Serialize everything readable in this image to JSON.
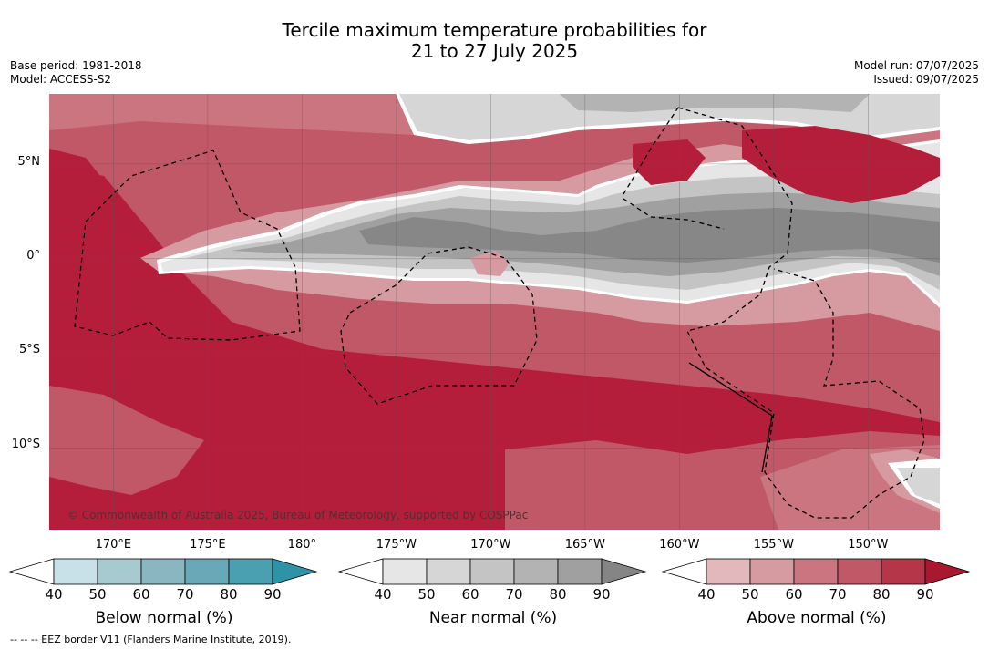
{
  "title_line1": "Tercile maximum temperature probabilities for",
  "title_line2": "21 to 27 July 2025",
  "base_period": "Base period: 1981-2018",
  "model": "Model: ACCESS-S2",
  "model_run": "Model run: 07/07/2025",
  "issued": "Issued: 09/07/2025",
  "lat_labels": [
    "5°N",
    "0°",
    "5°S",
    "10°S"
  ],
  "lat_values": [
    5,
    0,
    -5,
    -10
  ],
  "lon_labels": [
    "170°E",
    "175°E",
    "180°",
    "175°W",
    "170°W",
    "165°W",
    "160°W",
    "155°W",
    "150°W"
  ],
  "lon_values": [
    170,
    175,
    180,
    185,
    190,
    195,
    200,
    205,
    210
  ],
  "map_extent": {
    "lon_min": 166.6,
    "lon_max": 213.8,
    "lat_min": -14.3,
    "lat_max": 8.7
  },
  "copyright": "© Commonwealth of Australia 2025, Bureau of Meteorology, supported by COSPPac",
  "colorbars": [
    {
      "name": "below",
      "title": "Below normal (%)",
      "ticks": [
        "40",
        "50",
        "60",
        "70",
        "80",
        "90"
      ],
      "colors": [
        "#ffffff",
        "#c8e1e8",
        "#a7c9d0",
        "#89b6c0",
        "#69a9b7",
        "#4aa0b0",
        "#2e93a6"
      ]
    },
    {
      "name": "near",
      "title": "Near normal (%)",
      "ticks": [
        "40",
        "50",
        "60",
        "70",
        "80",
        "90"
      ],
      "colors": [
        "#ffffff",
        "#e6e6e6",
        "#d6d6d6",
        "#c4c4c4",
        "#b3b3b3",
        "#a0a0a0",
        "#858585"
      ]
    },
    {
      "name": "above",
      "title": "Above normal (%)",
      "ticks": [
        "40",
        "50",
        "60",
        "70",
        "80",
        "90"
      ],
      "colors": [
        "#ffffff",
        "#e2b8bd",
        "#d69aa1",
        "#cb7580",
        "#c05868",
        "#b53549",
        "#a8182e"
      ]
    }
  ],
  "footnote": "--  --  -- EEZ border V11 (Flanders Marine Institute, 2019).",
  "colors": {
    "above_base": "#bf4357",
    "above_high": "#b41e3b",
    "near_high": "#878787"
  }
}
